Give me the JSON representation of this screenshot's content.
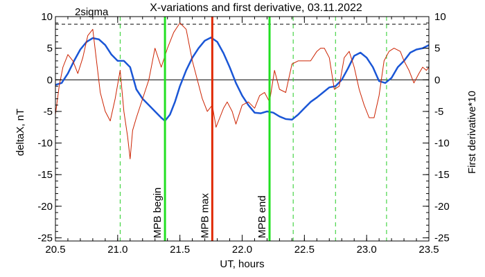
{
  "chart_data": {
    "type": "line",
    "title": "X-variations and first derivative, 03.11.2022",
    "xlabel": "UT, hours",
    "ylabel_left": "deltaX, nT",
    "ylabel_right": "First derivative*10",
    "xlim": [
      20.5,
      23.5
    ],
    "ylim": [
      -25.5,
      10
    ],
    "x_ticks": [
      "20.5",
      "21.0",
      "21.5",
      "22.0",
      "22.5",
      "23.0",
      "23.5"
    ],
    "y_ticks_left": [
      "-25",
      "-20",
      "-15",
      "-10",
      "-5",
      "0",
      "5",
      "10"
    ],
    "y_ticks_right": [
      "-25",
      "-20",
      "-15",
      "-10",
      "-5",
      "0",
      "5",
      "10"
    ],
    "sigma_label": "2sigma",
    "sigma_level": 8.8,
    "zero_line": 0,
    "colors": {
      "deltaX": "#1a56d6",
      "derivative": "#cc2200",
      "mpb_edge": "#22e022",
      "mpb_max": "#e02a00",
      "dashed_green": "#22cc22"
    },
    "vertical_markers": [
      {
        "x": 21.38,
        "label": "MPB begin",
        "color": "#22e022",
        "style": "solid"
      },
      {
        "x": 21.76,
        "label": "MPB max",
        "color": "#e02a00",
        "style": "solid"
      },
      {
        "x": 22.22,
        "label": "MPB end",
        "color": "#22e022",
        "style": "solid"
      }
    ],
    "dashed_lines": [
      21.02,
      22.41,
      22.75,
      23.16
    ],
    "series": [
      {
        "name": "deltaX",
        "axis": "left",
        "x": [
          20.5,
          20.55,
          20.6,
          20.65,
          20.7,
          20.75,
          20.8,
          20.85,
          20.9,
          20.95,
          21.0,
          21.05,
          21.1,
          21.15,
          21.2,
          21.25,
          21.3,
          21.35,
          21.38,
          21.42,
          21.46,
          21.5,
          21.55,
          21.6,
          21.65,
          21.7,
          21.75,
          21.8,
          21.85,
          21.9,
          21.95,
          22.0,
          22.05,
          22.1,
          22.15,
          22.2,
          22.25,
          22.3,
          22.35,
          22.4,
          22.45,
          22.5,
          22.55,
          22.6,
          22.65,
          22.7,
          22.75,
          22.8,
          22.85,
          22.9,
          22.95,
          23.0,
          23.05,
          23.1,
          23.15,
          23.2,
          23.25,
          23.3,
          23.35,
          23.4,
          23.45,
          23.5
        ],
        "values": [
          -0.8,
          -0.5,
          1.0,
          3.0,
          4.8,
          6.0,
          6.6,
          6.4,
          5.5,
          4.0,
          3.0,
          3.0,
          2.0,
          -1.5,
          -3.0,
          -4.0,
          -5.0,
          -6.0,
          -6.5,
          -5.5,
          -3.5,
          -1.0,
          1.5,
          3.5,
          5.0,
          6.2,
          6.7,
          6.0,
          4.2,
          2.0,
          -0.5,
          -2.5,
          -4.0,
          -5.2,
          -5.3,
          -5.0,
          -5.2,
          -5.8,
          -6.2,
          -6.3,
          -5.5,
          -4.5,
          -3.5,
          -2.8,
          -2.0,
          -1.2,
          -1.0,
          0.0,
          1.8,
          3.8,
          4.3,
          3.5,
          2.0,
          -0.2,
          -0.5,
          0.3,
          2.0,
          3.0,
          4.3,
          4.8,
          5.0,
          5.5
        ]
      },
      {
        "name": "First derivative*10",
        "axis": "right",
        "x": [
          20.5,
          20.53,
          20.56,
          20.6,
          20.64,
          20.68,
          20.72,
          20.76,
          20.8,
          20.83,
          20.86,
          20.9,
          20.94,
          20.98,
          21.02,
          21.05,
          21.08,
          21.1,
          21.12,
          21.15,
          21.2,
          21.25,
          21.3,
          21.35,
          21.4,
          21.45,
          21.5,
          21.55,
          21.6,
          21.64,
          21.68,
          21.72,
          21.76,
          21.79,
          21.82,
          21.85,
          21.88,
          21.92,
          21.95,
          22.0,
          22.05,
          22.1,
          22.14,
          22.18,
          22.22,
          22.26,
          22.3,
          22.35,
          22.4,
          22.45,
          22.5,
          22.55,
          22.6,
          22.63,
          22.66,
          22.7,
          22.74,
          22.78,
          22.82,
          22.86,
          22.9,
          22.94,
          22.98,
          23.02,
          23.06,
          23.1,
          23.14,
          23.18,
          23.22,
          23.27,
          23.3,
          23.34,
          23.38,
          23.42,
          23.45,
          23.48,
          23.5
        ],
        "values": [
          -5.5,
          -1.0,
          2.0,
          4.0,
          3.0,
          1.0,
          3.5,
          7.0,
          8.0,
          3.0,
          -2.0,
          -5.0,
          -6.5,
          -3.0,
          1.5,
          -5.0,
          -9.0,
          -12.5,
          -8.0,
          -6.0,
          -3.0,
          0.0,
          5.0,
          2.0,
          5.0,
          7.5,
          9.0,
          8.0,
          3.0,
          0.0,
          -3.0,
          -5.0,
          -4.0,
          -7.5,
          -6.0,
          -4.5,
          -3.5,
          -5.0,
          -7.0,
          -4.0,
          -3.5,
          -4.5,
          -2.5,
          -2.0,
          -3.5,
          1.5,
          -1.5,
          -2.0,
          2.5,
          3.0,
          3.0,
          3.0,
          4.5,
          5.0,
          5.0,
          3.5,
          -1.5,
          -1.0,
          3.5,
          4.5,
          2.0,
          -1.5,
          -4.0,
          -6.0,
          -6.0,
          -2.5,
          3.0,
          4.5,
          5.0,
          4.5,
          3.0,
          1.5,
          -0.5,
          1.0,
          2.0,
          1.5,
          2.0
        ]
      }
    ]
  }
}
